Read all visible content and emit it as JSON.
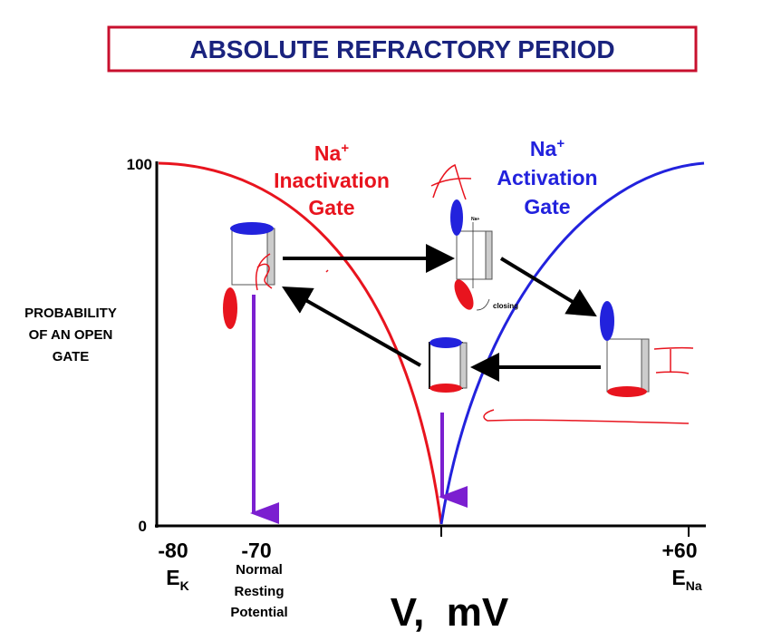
{
  "title": "ABSOLUTE  REFRACTORY  PERIOD",
  "y_axis": {
    "top": "100",
    "bottom": "0",
    "label": [
      "PROBABILITY",
      "OF  AN  OPEN",
      "GATE"
    ]
  },
  "inactivation": {
    "ion": "Na",
    "charge": "+",
    "lines": [
      "Inactivation",
      "Gate"
    ]
  },
  "activation": {
    "ion": "Na",
    "charge": "+",
    "lines": [
      "Activation",
      "Gate"
    ]
  },
  "x_axis": {
    "left": {
      "tick": "-80",
      "name": "E",
      "sub": "K"
    },
    "rest": {
      "tick": "-70",
      "note": [
        "Normal",
        "Resting",
        "Potential"
      ]
    },
    "right": {
      "tick": "+60",
      "name": "E",
      "sub": "Na"
    },
    "label": "V,  mV"
  },
  "gate_notes": {
    "ion": "Na+",
    "closing": "closing"
  }
}
